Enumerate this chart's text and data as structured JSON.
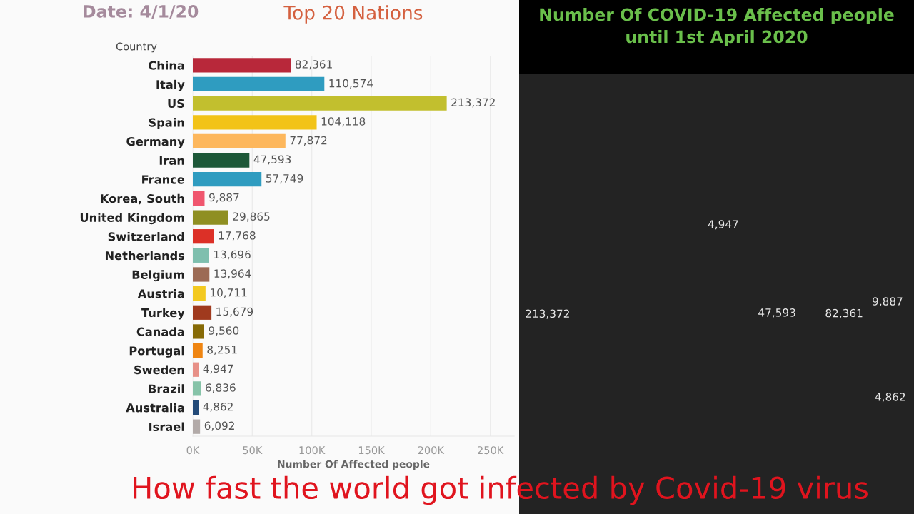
{
  "chart_data": [
    {
      "type": "bar",
      "orientation": "horizontal",
      "title": "Top 20 Nations",
      "ylabel": "Country",
      "xlabel": "Number Of Affected people",
      "annotations": [
        "Date: 4/1/20",
        "How fast the world got infected by Covid-19 virus"
      ],
      "categories": [
        "China",
        "Italy",
        "US",
        "Spain",
        "Germany",
        "Iran",
        "France",
        "Korea, South",
        "United Kingdom",
        "Switzerland",
        "Netherlands",
        "Belgium",
        "Austria",
        "Turkey",
        "Canada",
        "Portugal",
        "Sweden",
        "Brazil",
        "Australia",
        "Israel"
      ],
      "values": [
        82361,
        110574,
        213372,
        104118,
        77872,
        47593,
        57749,
        9887,
        29865,
        17768,
        13696,
        13964,
        10711,
        15679,
        9560,
        8251,
        4947,
        6836,
        4862,
        6092
      ],
      "value_labels": [
        "82,361",
        "110,574",
        "213,372",
        "104,118",
        "77,872",
        "47,593",
        "57,749",
        "9,887",
        "29,865",
        "17,768",
        "13,696",
        "13,964",
        "10,711",
        "15,679",
        "9,560",
        "8,251",
        "4,947",
        "6,836",
        "4,862",
        "6,092"
      ],
      "colors": [
        "#b8283a",
        "#2f9cc0",
        "#c2bf2e",
        "#f2c318",
        "#fdb75c",
        "#1d5838",
        "#2f9cc0",
        "#f0566e",
        "#8f8f22",
        "#dc3027",
        "#7fbfae",
        "#9c6b55",
        "#f3c920",
        "#a03a1e",
        "#866a06",
        "#ef8512",
        "#e79087",
        "#86c3a8",
        "#234a78",
        "#b2aaa8"
      ],
      "xlim": [
        0,
        270000
      ],
      "xticks": [
        {
          "value": 0,
          "label": "0K"
        },
        {
          "value": 50000,
          "label": "50K"
        },
        {
          "value": 100000,
          "label": "100K"
        },
        {
          "value": 150000,
          "label": "150K"
        },
        {
          "value": 200000,
          "label": "200K"
        },
        {
          "value": 250000,
          "label": "250K"
        }
      ],
      "grid": "x"
    },
    {
      "type": "other",
      "title": "Number Of COVID-19 Affected people\nuntil 1st April 2020",
      "annotations": [
        "4,947",
        "213,372",
        "47,593",
        "82,361",
        "9,887",
        "4,862"
      ]
    }
  ]
}
